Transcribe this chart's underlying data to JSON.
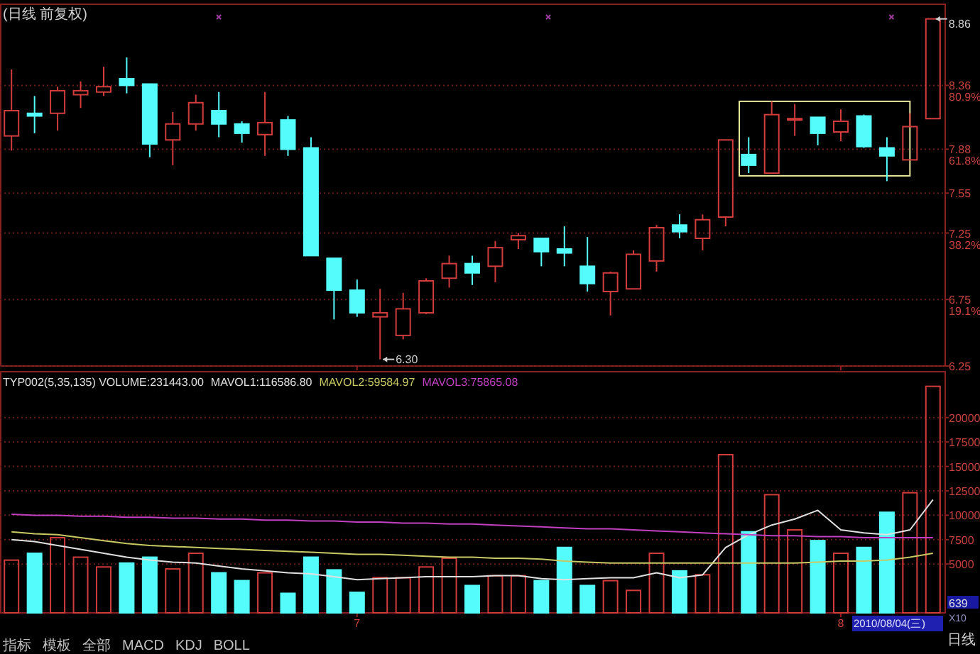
{
  "chart_data": [
    {
      "type": "candlestick",
      "title": "(日线 前复权)",
      "categories": [
        null,
        null,
        null,
        null,
        null,
        null,
        null,
        null,
        null,
        null,
        null,
        null,
        null,
        null,
        null,
        "7",
        null,
        null,
        null,
        null,
        null,
        null,
        null,
        null,
        null,
        null,
        null,
        null,
        null,
        null,
        null,
        null,
        null,
        null,
        null,
        null,
        "8",
        null,
        null,
        null,
        null
      ],
      "ohlc": [
        [
          7.98,
          8.48,
          7.87,
          8.17
        ],
        [
          8.15,
          8.28,
          8.0,
          8.13
        ],
        [
          8.15,
          8.35,
          8.02,
          8.32
        ],
        [
          8.29,
          8.39,
          8.19,
          8.32
        ],
        [
          8.31,
          8.5,
          8.28,
          8.35
        ],
        [
          8.41,
          8.57,
          8.3,
          8.36
        ],
        [
          8.37,
          8.37,
          7.82,
          7.92
        ],
        [
          7.95,
          8.16,
          7.76,
          8.07
        ],
        [
          8.07,
          8.29,
          8.02,
          8.23
        ],
        [
          8.17,
          8.31,
          7.97,
          8.07
        ],
        [
          8.07,
          8.09,
          7.93,
          8.0
        ],
        [
          7.99,
          8.31,
          7.83,
          8.08
        ],
        [
          8.1,
          8.13,
          7.83,
          7.88
        ],
        [
          7.89,
          7.97,
          7.08,
          7.08
        ],
        [
          7.06,
          7.06,
          6.6,
          6.82
        ],
        [
          6.82,
          6.9,
          6.62,
          6.65
        ],
        [
          6.62,
          6.83,
          6.3,
          6.65
        ],
        [
          6.48,
          6.8,
          6.45,
          6.68
        ],
        [
          6.65,
          6.91,
          6.64,
          6.89
        ],
        [
          6.91,
          7.08,
          6.84,
          7.02
        ],
        [
          7.02,
          7.08,
          6.86,
          6.95
        ],
        [
          7.0,
          7.19,
          6.88,
          7.14
        ],
        [
          7.2,
          7.25,
          7.13,
          7.23
        ],
        [
          7.21,
          7.21,
          7.0,
          7.11
        ],
        [
          7.13,
          7.3,
          7.0,
          7.1
        ],
        [
          7.0,
          7.22,
          6.81,
          6.87
        ],
        [
          6.81,
          6.96,
          6.63,
          6.95
        ],
        [
          6.83,
          7.12,
          6.83,
          7.09
        ],
        [
          7.04,
          7.31,
          6.96,
          7.29
        ],
        [
          7.31,
          7.39,
          7.21,
          7.26
        ],
        [
          7.21,
          7.39,
          7.12,
          7.35
        ],
        [
          7.37,
          7.95,
          7.3,
          7.95
        ],
        [
          7.84,
          7.97,
          7.7,
          7.76
        ],
        [
          7.7,
          8.24,
          7.7,
          8.14
        ],
        [
          8.1,
          8.22,
          7.98,
          8.11
        ],
        [
          8.12,
          8.12,
          7.91,
          8.0
        ],
        [
          8.01,
          8.18,
          7.94,
          8.09
        ],
        [
          8.13,
          8.14,
          7.89,
          7.9
        ],
        [
          7.89,
          7.97,
          7.64,
          7.83
        ],
        [
          7.8,
          8.15,
          7.8,
          8.05
        ],
        [
          8.11,
          8.86,
          8.11,
          8.86
        ]
      ],
      "ylim": [
        6.25,
        8.97
      ],
      "yticks": [
        6.25,
        {
          "value": 6.75,
          "label": "6.75\n19.1%"
        },
        {
          "value": 7.25,
          "label": "7.25\n38.2%"
        },
        7.55,
        {
          "value": 7.88,
          "label": "7.88\n61.8%"
        },
        {
          "value": 8.36,
          "label": "8.36\n80.9%"
        }
      ],
      "grid": "y",
      "tick_labels": "y",
      "annotations": [
        "8.86",
        "6.30"
      ]
    },
    {
      "type": "bar",
      "title": "TYP002(5,35,135) VOLUME:231443.00",
      "categories": [
        null,
        null,
        null,
        null,
        null,
        null,
        null,
        null,
        null,
        null,
        null,
        null,
        null,
        null,
        null,
        "7",
        null,
        null,
        null,
        null,
        null,
        null,
        null,
        null,
        null,
        null,
        null,
        null,
        null,
        null,
        null,
        null,
        null,
        null,
        null,
        null,
        "8",
        null,
        null,
        null,
        null
      ],
      "series": [
        {
          "type": "bar",
          "values": [
            5400,
            6100,
            7700,
            5700,
            4700,
            5100,
            5700,
            4500,
            6100,
            4100,
            3300,
            4100,
            2000,
            5700,
            4400,
            2100,
            3600,
            3600,
            4700,
            5600,
            2800,
            3800,
            3800,
            3300,
            6700,
            2800,
            3300,
            2300,
            6100,
            4300,
            3900,
            16200,
            8300,
            12100,
            8500,
            7400,
            6100,
            6700,
            10300,
            12300,
            23200
          ],
          "colors": [
            "#d23c3c",
            "#54fcfc",
            "#d23c3c",
            "#d23c3c",
            "#d23c3c",
            "#54fcfc",
            "#54fcfc",
            "#d23c3c",
            "#d23c3c",
            "#54fcfc",
            "#54fcfc",
            "#d23c3c",
            "#54fcfc",
            "#54fcfc",
            "#54fcfc",
            "#54fcfc",
            "#d23c3c",
            "#d23c3c",
            "#d23c3c",
            "#d23c3c",
            "#54fcfc",
            "#d23c3c",
            "#d23c3c",
            "#54fcfc",
            "#54fcfc",
            "#54fcfc",
            "#d23c3c",
            "#d23c3c",
            "#d23c3c",
            "#54fcfc",
            "#d23c3c",
            "#d23c3c",
            "#54fcfc",
            "#d23c3c",
            "#d23c3c",
            "#54fcfc",
            "#d23c3c",
            "#54fcfc",
            "#54fcfc",
            "#d23c3c",
            "#d23c3c"
          ]
        },
        {
          "name": "MAVOL1:116586.80",
          "type": "line",
          "color": "#e0e0e0",
          "values": [
            7500,
            7300,
            6900,
            6500,
            6100,
            5700,
            5400,
            5200,
            5100,
            4800,
            4500,
            4300,
            4100,
            4000,
            3700,
            3400,
            3500,
            3600,
            3700,
            3700,
            3700,
            3800,
            3800,
            3500,
            3400,
            3500,
            3600,
            3600,
            4100,
            3600,
            3900,
            6700,
            8000,
            9000,
            9600,
            10500,
            8500,
            8200,
            8000,
            8500,
            11600
          ]
        },
        {
          "name": "MAVOL2:59584.97",
          "type": "line",
          "color": "#c8c864",
          "values": [
            8300,
            8100,
            8000,
            7700,
            7400,
            7100,
            6900,
            6800,
            6700,
            6600,
            6500,
            6400,
            6300,
            6200,
            6100,
            6000,
            6000,
            5900,
            5800,
            5700,
            5700,
            5600,
            5600,
            5500,
            5300,
            5200,
            5100,
            5100,
            5100,
            5100,
            5100,
            5100,
            5100,
            5100,
            5100,
            5200,
            5300,
            5300,
            5400,
            5700,
            6100
          ]
        },
        {
          "name": "MAVOL3:75865.08",
          "type": "line",
          "color": "#c040c0",
          "values": [
            10100,
            10000,
            10000,
            9900,
            9900,
            9800,
            9800,
            9700,
            9700,
            9600,
            9600,
            9500,
            9500,
            9400,
            9400,
            9300,
            9300,
            9200,
            9200,
            9100,
            9100,
            9000,
            8900,
            8800,
            8700,
            8600,
            8600,
            8500,
            8400,
            8300,
            8200,
            8100,
            8000,
            7900,
            7900,
            7800,
            7800,
            7700,
            7700,
            7700,
            7700
          ]
        }
      ],
      "ylim": [
        0,
        24700
      ],
      "yticks": [
        5000,
        7500,
        10000,
        12500,
        15000,
        17500,
        20000
      ],
      "grid": "y",
      "legend": "top left",
      "annotations": [
        "639",
        "X10",
        "2010/08/04(三)",
        "日线",
        "指标",
        "模板",
        "全部",
        "MACD",
        "KDJ",
        "BOLL"
      ]
    }
  ]
}
